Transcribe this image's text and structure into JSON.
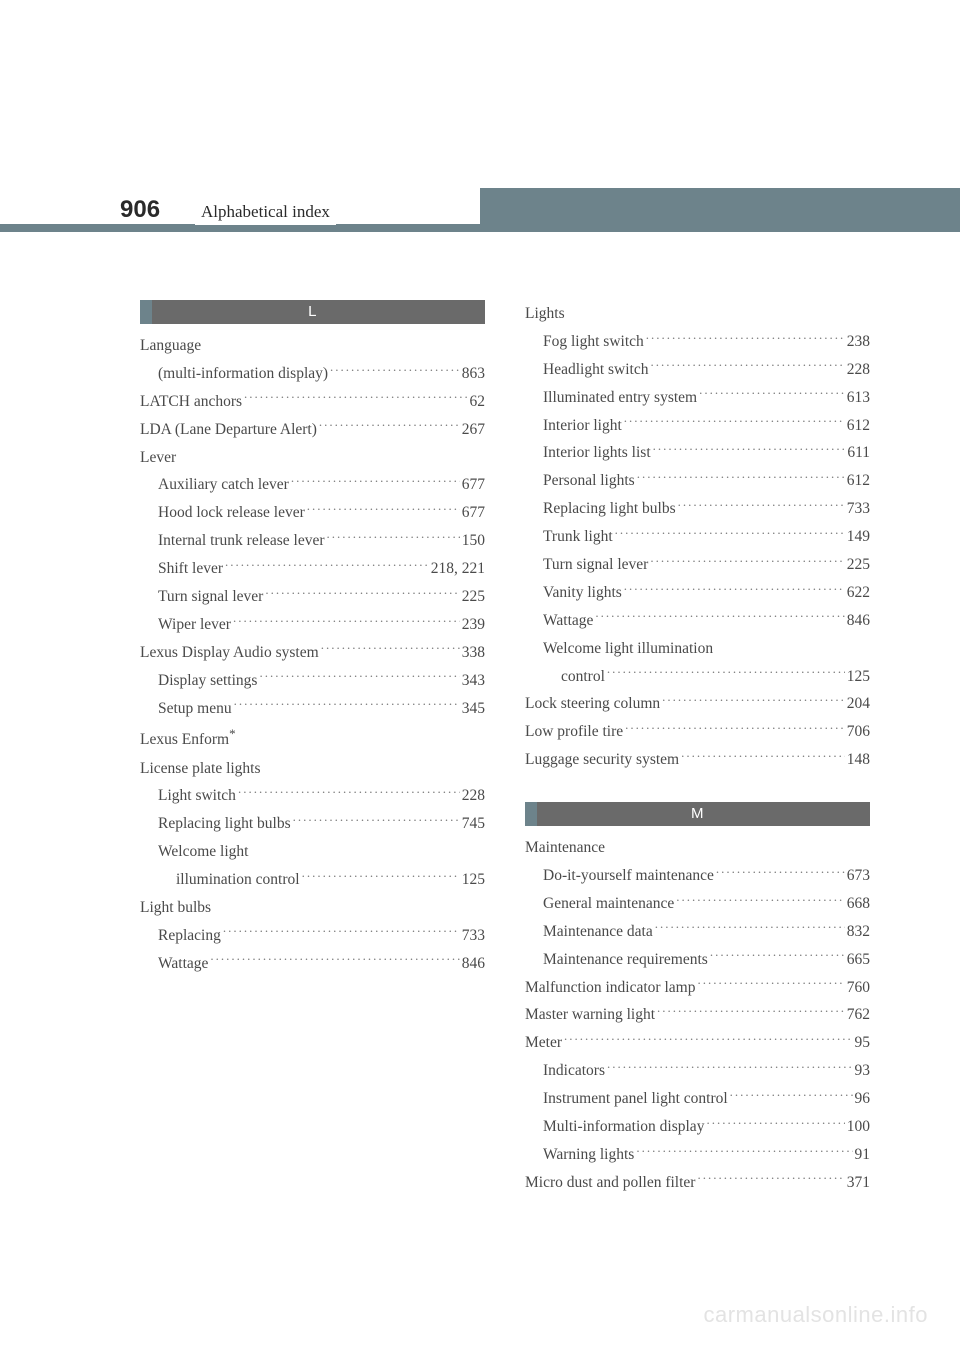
{
  "header": {
    "page_number": "906",
    "title": "Alphabetical index"
  },
  "letters": {
    "L": "L",
    "M": "M"
  },
  "col1": [
    {
      "type": "letter",
      "key": "L"
    },
    {
      "label": "Language",
      "nopage": true
    },
    {
      "label": "(multi-information display)",
      "page": "863",
      "sub": 1
    },
    {
      "label": "LATCH anchors",
      "page": "62"
    },
    {
      "label": "LDA (Lane Departure Alert)",
      "page": "267"
    },
    {
      "label": "Lever",
      "nopage": true
    },
    {
      "label": "Auxiliary catch lever",
      "page": "677",
      "sub": 1
    },
    {
      "label": "Hood lock release lever",
      "page": "677",
      "sub": 1
    },
    {
      "label": "Internal trunk release lever",
      "page": "150",
      "sub": 1
    },
    {
      "label": "Shift lever",
      "page": "218, 221",
      "sub": 1
    },
    {
      "label": "Turn signal lever",
      "page": "225",
      "sub": 1
    },
    {
      "label": "Wiper lever",
      "page": "239",
      "sub": 1
    },
    {
      "label": "Lexus Display Audio system",
      "page": "338"
    },
    {
      "label": "Display settings",
      "page": "343",
      "sub": 1
    },
    {
      "label": "Setup menu",
      "page": "345",
      "sub": 1
    },
    {
      "label": "Lexus Enform",
      "nopage": true,
      "star": true
    },
    {
      "label": "License plate lights",
      "nopage": true
    },
    {
      "label": "Light switch",
      "page": "228",
      "sub": 1
    },
    {
      "label": "Replacing light bulbs",
      "page": "745",
      "sub": 1
    },
    {
      "label": "Welcome light",
      "nopage": true,
      "sub": 1
    },
    {
      "label": "illumination control",
      "page": "125",
      "sub": 2
    },
    {
      "label": "Light bulbs",
      "nopage": true
    },
    {
      "label": "Replacing",
      "page": "733",
      "sub": 1
    },
    {
      "label": "Wattage",
      "page": "846",
      "sub": 1
    }
  ],
  "col2_top": [
    {
      "label": "Lights",
      "nopage": true
    },
    {
      "label": "Fog light switch",
      "page": "238",
      "sub": 1
    },
    {
      "label": "Headlight switch",
      "page": "228",
      "sub": 1
    },
    {
      "label": "Illuminated entry system",
      "page": "613",
      "sub": 1
    },
    {
      "label": "Interior light",
      "page": "612",
      "sub": 1
    },
    {
      "label": "Interior lights list",
      "page": "611",
      "sub": 1
    },
    {
      "label": "Personal lights",
      "page": "612",
      "sub": 1
    },
    {
      "label": "Replacing light bulbs",
      "page": "733",
      "sub": 1
    },
    {
      "label": "Trunk light",
      "page": "149",
      "sub": 1
    },
    {
      "label": "Turn signal lever",
      "page": "225",
      "sub": 1
    },
    {
      "label": "Vanity lights",
      "page": "622",
      "sub": 1
    },
    {
      "label": "Wattage",
      "page": "846",
      "sub": 1
    },
    {
      "label": "Welcome light illumination",
      "nopage": true,
      "sub": 1
    },
    {
      "label": "control",
      "page": "125",
      "sub": 2
    },
    {
      "label": "Lock steering column",
      "page": "204"
    },
    {
      "label": "Low profile tire",
      "page": "706"
    },
    {
      "label": "Luggage security system",
      "page": "148"
    }
  ],
  "col2_bot": [
    {
      "type": "letter",
      "key": "M"
    },
    {
      "label": "Maintenance",
      "nopage": true
    },
    {
      "label": "Do-it-yourself maintenance",
      "page": "673",
      "sub": 1
    },
    {
      "label": "General maintenance",
      "page": "668",
      "sub": 1
    },
    {
      "label": "Maintenance data",
      "page": "832",
      "sub": 1
    },
    {
      "label": "Maintenance requirements",
      "page": "665",
      "sub": 1
    },
    {
      "label": "Malfunction indicator lamp",
      "page": "760"
    },
    {
      "label": "Master warning light",
      "page": "762"
    },
    {
      "label": "Meter",
      "page": "95"
    },
    {
      "label": "Indicators",
      "page": "93",
      "sub": 1
    },
    {
      "label": "Instrument panel light control",
      "page": "96",
      "sub": 1
    },
    {
      "label": "Multi-information display",
      "page": "100",
      "sub": 1
    },
    {
      "label": "Warning lights",
      "page": "91",
      "sub": 1
    },
    {
      "label": "Micro dust and pollen filter",
      "page": "371"
    }
  ],
  "watermark": "carmanualsonline.info"
}
